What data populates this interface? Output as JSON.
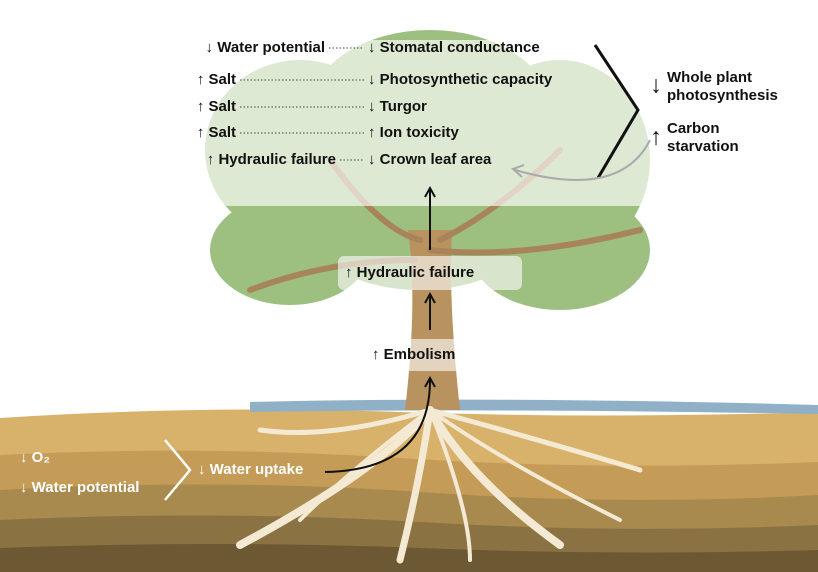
{
  "effects": [
    {
      "cause": "↓ Water potential",
      "effect": "↓ Stomatal conductance"
    },
    {
      "cause": "↑ Salt",
      "effect": "↓ Photosynthetic capacity"
    },
    {
      "cause": "↑ Salt",
      "effect": "↓ Turgor"
    },
    {
      "cause": "↑ Salt",
      "effect": "↑ Ion toxicity"
    },
    {
      "cause": "↑ Hydraulic failure",
      "effect": "↓ Crown leaf area"
    }
  ],
  "outcomes": [
    {
      "arrow": "↓",
      "lines": [
        "Whole plant",
        "photosynthesis"
      ]
    },
    {
      "arrow": "↑",
      "lines": [
        "Carbon",
        "starvation"
      ]
    }
  ],
  "trunk": [
    "↑ Hydraulic failure",
    "↑ Embolism"
  ],
  "soil": {
    "oxygen": "↓ O₂",
    "water_potential": "↓ Water potential",
    "uptake": "↓ Water uptake"
  }
}
